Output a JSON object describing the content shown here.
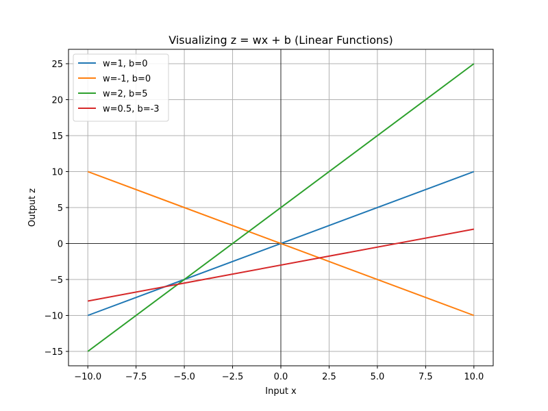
{
  "chart_data": {
    "type": "line",
    "title": "Visualizing z = wx + b (Linear Functions)",
    "xlabel": "Input x",
    "ylabel": "Output z",
    "xlim": [
      -11,
      11
    ],
    "ylim": [
      -17,
      27
    ],
    "xticks": [
      -10.0,
      -7.5,
      -5.0,
      -2.5,
      0.0,
      2.5,
      5.0,
      7.5,
      10.0
    ],
    "xtick_labels": [
      "−10.0",
      "−7.5",
      "−5.0",
      "−2.5",
      "0.0",
      "2.5",
      "5.0",
      "7.5",
      "10.0"
    ],
    "yticks": [
      -15,
      -10,
      -5,
      0,
      5,
      10,
      15,
      20,
      25
    ],
    "ytick_labels": [
      "−15",
      "−10",
      "−5",
      "0",
      "5",
      "10",
      "15",
      "20",
      "25"
    ],
    "grid": true,
    "reference_lines": {
      "x": 0,
      "y": 0
    },
    "legend_position": "top-left",
    "series": [
      {
        "name": "w=1, b=0",
        "color": "#1f77b4",
        "x": [
          -10,
          10
        ],
        "y": [
          -10,
          10
        ]
      },
      {
        "name": "w=-1, b=0",
        "color": "#ff7f0e",
        "x": [
          -10,
          10
        ],
        "y": [
          10,
          -10
        ]
      },
      {
        "name": "w=2, b=5",
        "color": "#2ca02c",
        "x": [
          -10,
          10
        ],
        "y": [
          -15,
          25
        ]
      },
      {
        "name": "w=0.5, b=-3",
        "color": "#d62728",
        "x": [
          -10,
          10
        ],
        "y": [
          -8,
          2
        ]
      }
    ]
  }
}
